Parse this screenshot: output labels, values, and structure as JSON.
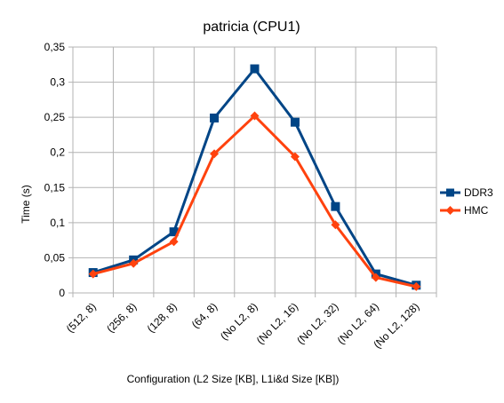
{
  "chart_data": {
    "type": "line",
    "title": "patricia (CPU1)",
    "xlabel": "Configuration (L2 Size [KB], L1i&d Size [KB])",
    "ylabel": "Time (s)",
    "categories": [
      "(512, 8)",
      "(256, 8)",
      "(128, 8)",
      "(64, 8)",
      "(No L2, 8)",
      "(No L2, 16)",
      "(No L2, 32)",
      "(No L2, 64)",
      "(No L2, 128)"
    ],
    "ylim": [
      0,
      0.35
    ],
    "yticks": [
      0,
      0.05,
      0.1,
      0.15,
      0.2,
      0.25,
      0.3,
      0.35
    ],
    "ytick_labels": [
      "0",
      "0,05",
      "0,1",
      "0,15",
      "0,2",
      "0,25",
      "0,3",
      "0,35"
    ],
    "grid": true,
    "legend_position": "right",
    "series": [
      {
        "name": "DDR3",
        "color": "#004586",
        "marker": "square",
        "values": [
          0.029,
          0.047,
          0.087,
          0.249,
          0.319,
          0.243,
          0.123,
          0.027,
          0.011
        ]
      },
      {
        "name": "HMC",
        "color": "#ff420e",
        "marker": "diamond",
        "values": [
          0.027,
          0.042,
          0.073,
          0.198,
          0.252,
          0.194,
          0.097,
          0.022,
          0.009
        ]
      }
    ]
  }
}
